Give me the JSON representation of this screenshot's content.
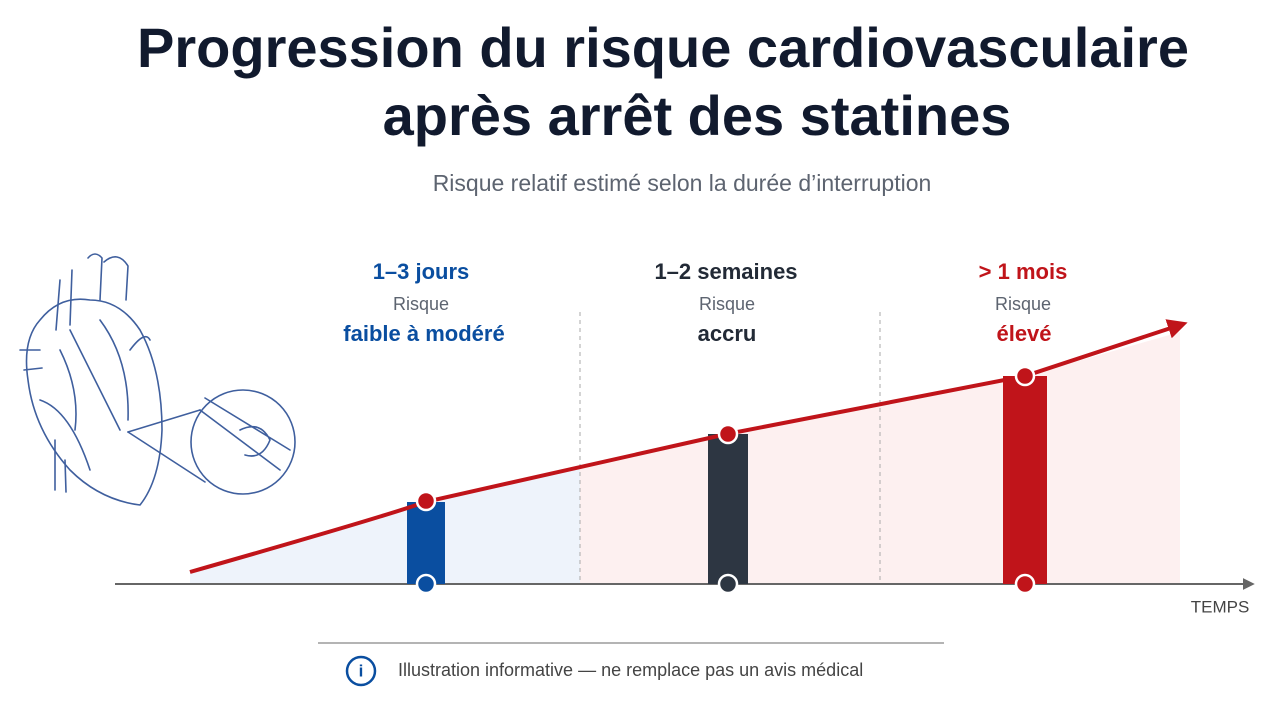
{
  "header": {
    "title_lines": [
      "Progression du risque cardiovasculaire",
      "après arrêt des statines"
    ],
    "subtitle": "Risque relatif estimé selon la durée d’interruption"
  },
  "phases": [
    {
      "period": "1–3 jours",
      "caption": "Risque",
      "level": "faible à modéré"
    },
    {
      "period": "1–2 semaines",
      "caption": "Risque",
      "level": "accru"
    },
    {
      "period": "> 1 mois",
      "caption": "Risque",
      "level": "élevé"
    }
  ],
  "axis_label": "TEMPS",
  "footer": {
    "icon": "i",
    "note": "Illustration informative — ne remplace pas un avis médical"
  }
}
